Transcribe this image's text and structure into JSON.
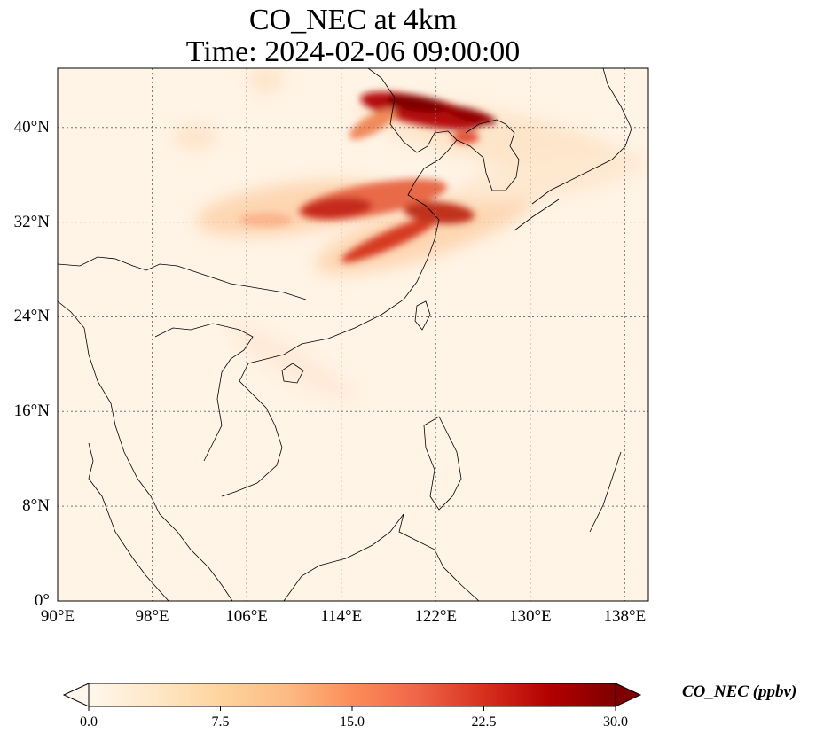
{
  "title": {
    "line1": "CO_NEC at 4km",
    "line2": "Time: 2024-02-06 09:00:00"
  },
  "map": {
    "extent": {
      "lon_min": 90,
      "lon_max": 140,
      "lat_min": 0,
      "lat_max": 45
    },
    "gridlines": "dotted grey",
    "lat_ticks": [
      {
        "lat": 40,
        "label": "40°N"
      },
      {
        "lat": 32,
        "label": "32°N"
      },
      {
        "lat": 24,
        "label": "24°N"
      },
      {
        "lat": 16,
        "label": "16°N"
      },
      {
        "lat": 8,
        "label": "8°N"
      },
      {
        "lat": 0,
        "label": "0°"
      }
    ],
    "lon_ticks": [
      {
        "lon": 90,
        "label": "90°E"
      },
      {
        "lon": 98,
        "label": "98°E"
      },
      {
        "lon": 106,
        "label": "106°E"
      },
      {
        "lon": 114,
        "label": "114°E"
      },
      {
        "lon": 122,
        "label": "122°E"
      },
      {
        "lon": 130,
        "label": "130°E"
      },
      {
        "lon": 138,
        "label": "138°E"
      }
    ]
  },
  "colorbar": {
    "label": "CO_NEC (ppbv)",
    "colormap": "OrRd",
    "range": [
      0,
      30
    ],
    "extend": "both",
    "ticks": [
      "0.0",
      "7.5",
      "15.0",
      "22.5",
      "30.0"
    ],
    "colors": [
      "#fff7ec",
      "#fee8c8",
      "#fdd49e",
      "#fdbb84",
      "#fc8d59",
      "#ef6548",
      "#d7301f",
      "#b30000",
      "#7f0000"
    ]
  }
}
